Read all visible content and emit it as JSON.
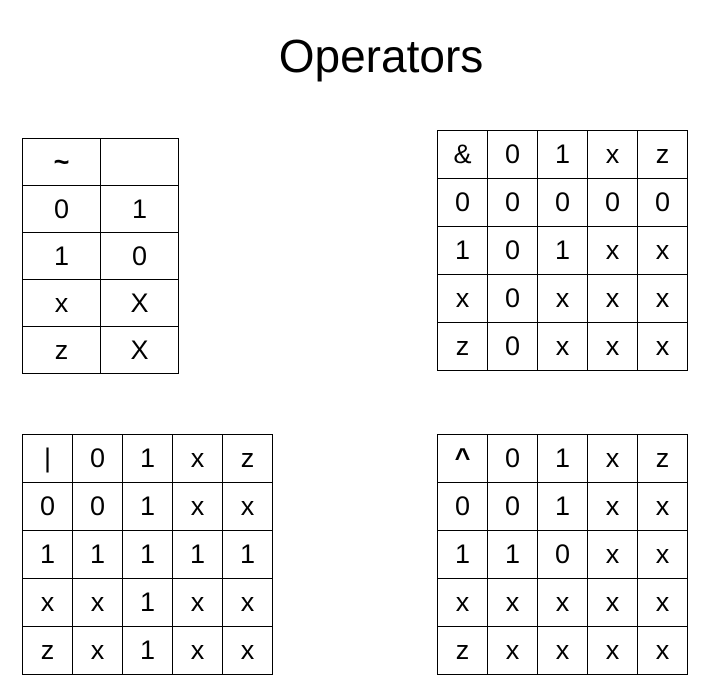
{
  "title": "Operators",
  "not_table": {
    "rows": [
      [
        "~",
        ""
      ],
      [
        "0",
        "1"
      ],
      [
        "1",
        "0"
      ],
      [
        "x",
        "X"
      ],
      [
        "z",
        "X"
      ]
    ]
  },
  "and_table": {
    "rows": [
      [
        "&",
        "0",
        "1",
        "x",
        "z"
      ],
      [
        "0",
        "0",
        "0",
        "0",
        "0"
      ],
      [
        "1",
        "0",
        "1",
        "x",
        "x"
      ],
      [
        "x",
        "0",
        "x",
        "x",
        "x"
      ],
      [
        "z",
        "0",
        "x",
        "x",
        "x"
      ]
    ]
  },
  "or_table": {
    "rows": [
      [
        "|",
        "0",
        "1",
        "x",
        "z"
      ],
      [
        "0",
        "0",
        "1",
        "x",
        "x"
      ],
      [
        "1",
        "1",
        "1",
        "1",
        "1"
      ],
      [
        "x",
        "x",
        "1",
        "x",
        "x"
      ],
      [
        "z",
        "x",
        "1",
        "x",
        "x"
      ]
    ]
  },
  "xor_table": {
    "rows": [
      [
        "^",
        "0",
        "1",
        "x",
        "z"
      ],
      [
        "0",
        "0",
        "1",
        "x",
        "x"
      ],
      [
        "1",
        "1",
        "0",
        "x",
        "x"
      ],
      [
        "x",
        "x",
        "x",
        "x",
        "x"
      ],
      [
        "z",
        "x",
        "x",
        "x",
        "x"
      ]
    ]
  }
}
